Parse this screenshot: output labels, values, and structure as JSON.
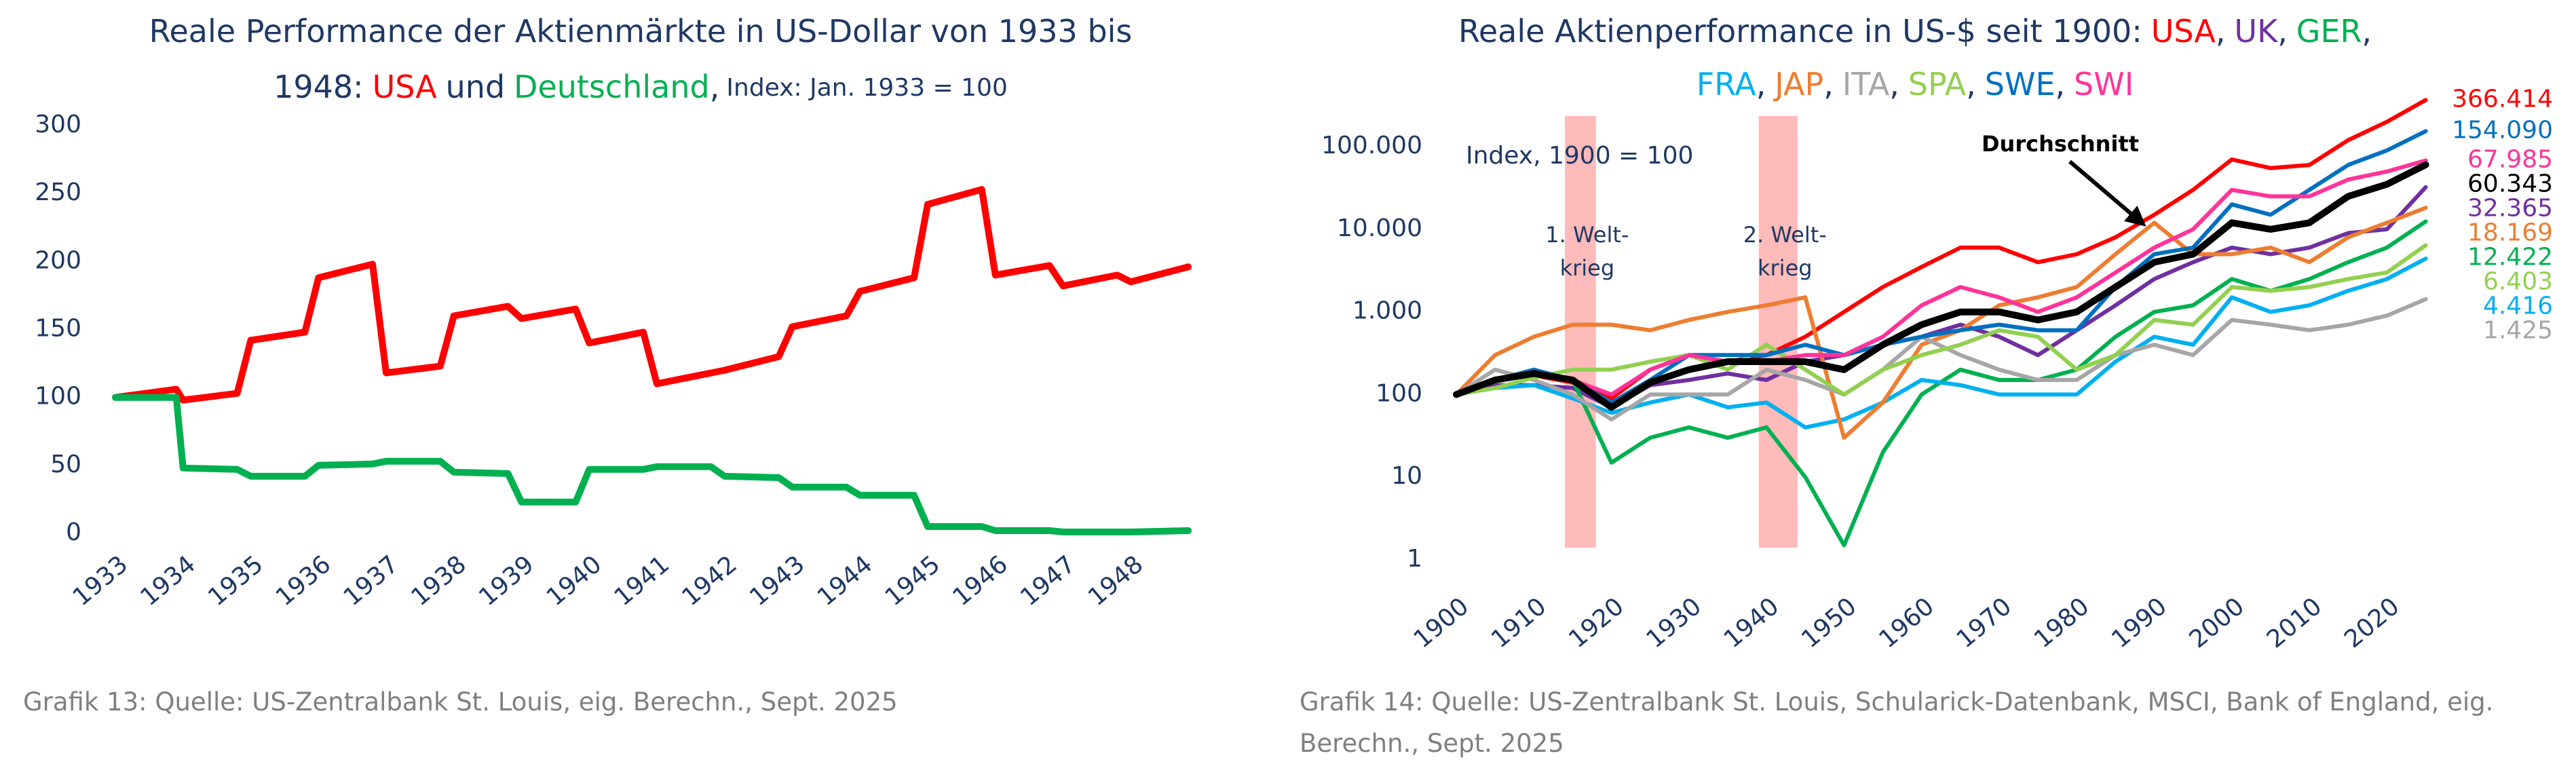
{
  "chart_data": [
    {
      "type": "line",
      "title": [
        "Reale Performance der Aktienmärkte in US-Dollar von 1933 bis",
        "1948:"
      ],
      "title_joiner": "und",
      "legend_separator": ",",
      "subtitle": "Index: Jan. 1933 = 100",
      "caption": "Grafik 13: Quelle: US-Zentralbank St. Louis, eig. Berechn., Sept. 2025",
      "x": [
        1933,
        1933.9,
        1934,
        1934.8,
        1935,
        1935.8,
        1936,
        1936.8,
        1937,
        1937.8,
        1938,
        1938.8,
        1939,
        1939.8,
        1940,
        1940.8,
        1941,
        1941.8,
        1942,
        1942.8,
        1943,
        1943.8,
        1944,
        1944.8,
        1945,
        1945.8,
        1946,
        1946.8,
        1947,
        1947.8,
        1948,
        1948.85
      ],
      "series": [
        {
          "name": "USA",
          "color": "#ff0000",
          "values": [
            100,
            106,
            98,
            103,
            142,
            148,
            188,
            198,
            118,
            123,
            160,
            167,
            158,
            165,
            140,
            148,
            110,
            118,
            120,
            130,
            152,
            160,
            178,
            188,
            242,
            253,
            190,
            197,
            182,
            190,
            185,
            196
          ]
        },
        {
          "name": "Deutschland",
          "color": "#00b050",
          "values": [
            100,
            100,
            48,
            47,
            42,
            42,
            50,
            51,
            53,
            53,
            45,
            44,
            23,
            23,
            47,
            47,
            49,
            49,
            42,
            41,
            34,
            34,
            28,
            28,
            5,
            5,
            2,
            2,
            1,
            1,
            1,
            2
          ]
        }
      ],
      "xlim": [
        1933,
        1949
      ],
      "xticks": [
        1933,
        1934,
        1935,
        1936,
        1937,
        1938,
        1939,
        1940,
        1941,
        1942,
        1943,
        1944,
        1945,
        1946,
        1947,
        1948
      ],
      "ylim": [
        0,
        300
      ],
      "yticks": [
        0,
        50,
        100,
        150,
        200,
        250,
        300
      ],
      "log_scale": false
    },
    {
      "type": "line",
      "title": [
        "Reale Aktienperformance in US-$ seit 1900:"
      ],
      "legend_separator": ",",
      "subtitle": "Index, 1900 = 100",
      "caption": "Grafik 14: Quelle: US-Zentralbank St. Louis, Schularick-Datenbank, MSCI, Bank of England, eig. Berechn., Sept. 2025",
      "bands": [
        {
          "label": [
            "1. Welt-",
            "krieg"
          ],
          "from": 1914,
          "to": 1918,
          "color": "#ffb3b3"
        },
        {
          "label": [
            "2. Welt-",
            "krieg"
          ],
          "from": 1939,
          "to": 1944,
          "color": "#ffb3b3"
        }
      ],
      "x": [
        1900,
        1905,
        1910,
        1915,
        1920,
        1925,
        1930,
        1935,
        1940,
        1945,
        1950,
        1955,
        1960,
        1965,
        1970,
        1975,
        1980,
        1985,
        1990,
        1995,
        2000,
        2005,
        2010,
        2015,
        2020,
        2025
      ],
      "series": [
        {
          "name": "USA",
          "color": "#ff0000",
          "values": [
            100,
            150,
            170,
            140,
            90,
            200,
            300,
            250,
            300,
            500,
            1000,
            2000,
            3500,
            6000,
            6000,
            4000,
            5000,
            8000,
            15000,
            30000,
            70000,
            55000,
            60000,
            120000,
            200000,
            366414
          ],
          "value_labels": [
            null,
            null,
            null,
            null,
            null,
            null,
            null,
            null,
            null,
            null,
            null,
            null,
            null,
            null,
            null,
            null,
            null,
            null,
            null,
            null,
            null,
            null,
            null,
            null,
            null,
            "366.414"
          ]
        },
        {
          "name": "UK",
          "color": "#7030a0",
          "values": [
            100,
            130,
            130,
            120,
            70,
            130,
            150,
            180,
            150,
            250,
            300,
            400,
            500,
            700,
            500,
            300,
            600,
            1200,
            2500,
            4000,
            6000,
            5000,
            6000,
            9000,
            10000,
            32365
          ],
          "value_labels": [
            null,
            null,
            null,
            null,
            null,
            null,
            null,
            null,
            null,
            null,
            null,
            null,
            null,
            null,
            null,
            null,
            null,
            null,
            null,
            null,
            null,
            null,
            null,
            null,
            null,
            "32.365"
          ]
        },
        {
          "name": "GER",
          "color": "#00b050",
          "values": [
            100,
            150,
            180,
            150,
            15,
            30,
            40,
            30,
            40,
            10,
            1.5,
            20,
            100,
            200,
            150,
            150,
            200,
            500,
            1000,
            1200,
            2500,
            1800,
            2500,
            4000,
            6000,
            12422
          ],
          "value_labels": [
            null,
            null,
            null,
            null,
            null,
            null,
            null,
            null,
            null,
            null,
            null,
            null,
            null,
            null,
            null,
            null,
            null,
            null,
            null,
            null,
            null,
            null,
            null,
            null,
            null,
            "12.422"
          ]
        },
        {
          "name": "FRA",
          "color": "#00b0f0",
          "values": [
            100,
            120,
            130,
            90,
            60,
            80,
            100,
            70,
            80,
            40,
            50,
            80,
            150,
            130,
            100,
            100,
            100,
            250,
            500,
            400,
            1500,
            1000,
            1200,
            1800,
            2500,
            4416
          ],
          "value_labels": [
            null,
            null,
            null,
            null,
            null,
            null,
            null,
            null,
            null,
            null,
            null,
            null,
            null,
            null,
            null,
            null,
            null,
            null,
            null,
            null,
            null,
            null,
            null,
            null,
            null,
            "4.416"
          ]
        },
        {
          "name": "JAP",
          "color": "#ed7d31",
          "values": [
            100,
            300,
            500,
            700,
            700,
            600,
            800,
            1000,
            1200,
            1500,
            30,
            80,
            400,
            600,
            1200,
            1500,
            2000,
            5000,
            12000,
            5000,
            5000,
            6000,
            4000,
            8000,
            12000,
            18169
          ],
          "value_labels": [
            null,
            null,
            null,
            null,
            null,
            null,
            null,
            null,
            null,
            null,
            null,
            null,
            null,
            null,
            null,
            null,
            null,
            null,
            null,
            null,
            null,
            null,
            null,
            null,
            null,
            "18.169"
          ]
        },
        {
          "name": "ITA",
          "color": "#a6a6a6",
          "values": [
            100,
            200,
            150,
            100,
            50,
            100,
            100,
            100,
            200,
            150,
            100,
            200,
            500,
            300,
            200,
            150,
            150,
            300,
            400,
            300,
            800,
            700,
            600,
            700,
            900,
            1425
          ],
          "value_labels": [
            null,
            null,
            null,
            null,
            null,
            null,
            null,
            null,
            null,
            null,
            null,
            null,
            null,
            null,
            null,
            null,
            null,
            null,
            null,
            null,
            null,
            null,
            null,
            null,
            null,
            "1.425"
          ]
        },
        {
          "name": "SPA",
          "color": "#92d050",
          "values": [
            100,
            120,
            160,
            200,
            200,
            250,
            300,
            200,
            400,
            200,
            100,
            200,
            300,
            400,
            600,
            500,
            200,
            300,
            800,
            700,
            2000,
            1800,
            2000,
            2500,
            3000,
            6403
          ],
          "value_labels": [
            null,
            null,
            null,
            null,
            null,
            null,
            null,
            null,
            null,
            null,
            null,
            null,
            null,
            null,
            null,
            null,
            null,
            null,
            null,
            null,
            null,
            null,
            null,
            null,
            null,
            "6.403"
          ]
        },
        {
          "name": "SWE",
          "color": "#0070c0",
          "values": [
            100,
            150,
            200,
            150,
            80,
            150,
            300,
            300,
            300,
            400,
            300,
            400,
            500,
            600,
            700,
            600,
            600,
            2000,
            5000,
            6000,
            20000,
            15000,
            30000,
            60000,
            90000,
            154090
          ],
          "value_labels": [
            null,
            null,
            null,
            null,
            null,
            null,
            null,
            null,
            null,
            null,
            null,
            null,
            null,
            null,
            null,
            null,
            null,
            null,
            null,
            null,
            null,
            null,
            null,
            null,
            null,
            "154.090"
          ]
        },
        {
          "name": "SWI",
          "color": "#ff3399",
          "values": [
            100,
            150,
            180,
            150,
            100,
            200,
            300,
            250,
            250,
            300,
            300,
            500,
            1200,
            2000,
            1500,
            1000,
            1500,
            3000,
            6000,
            10000,
            30000,
            25000,
            25000,
            40000,
            50000,
            67985
          ],
          "value_labels": [
            null,
            null,
            null,
            null,
            null,
            null,
            null,
            null,
            null,
            null,
            null,
            null,
            null,
            null,
            null,
            null,
            null,
            null,
            null,
            null,
            null,
            null,
            null,
            null,
            null,
            "67.985"
          ]
        },
        {
          "name": "Durchschnitt",
          "color": "#000000",
          "values": [
            100,
            150,
            180,
            150,
            70,
            140,
            200,
            250,
            250,
            250,
            200,
            400,
            700,
            1000,
            1000,
            800,
            1000,
            2000,
            4000,
            5000,
            12000,
            10000,
            12000,
            25000,
            35000,
            60343
          ],
          "value_labels": [
            null,
            null,
            null,
            null,
            null,
            null,
            null,
            null,
            null,
            null,
            null,
            null,
            null,
            null,
            null,
            null,
            null,
            null,
            null,
            null,
            null,
            null,
            null,
            null,
            null,
            "60.343"
          ]
        }
      ],
      "xlim": [
        1900,
        2026
      ],
      "xticks": [
        1900,
        1910,
        1920,
        1930,
        1940,
        1950,
        1960,
        1970,
        1980,
        1990,
        2000,
        2010,
        2020
      ],
      "ylim": [
        1,
        500000
      ],
      "yticks": [
        1,
        10,
        100,
        {
          "value": 1000,
          "label": "1.000"
        },
        {
          "value": 10000,
          "label": "10.000"
        },
        {
          "value": 100000,
          "label": "100.000"
        }
      ],
      "log_scale": true
    }
  ]
}
